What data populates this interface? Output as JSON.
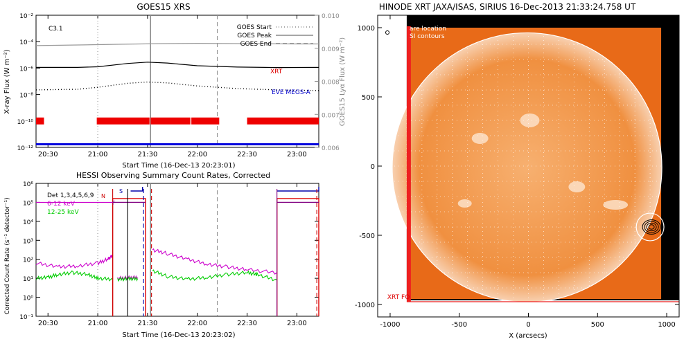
{
  "chart_data": [
    {
      "type": "line",
      "title": "GOES15 XRS",
      "flare_class": "C3.1",
      "xlabel": "Start Time (16-Dec-13 20:23:01)",
      "ylabel": "X-ray Flux (W m⁻²)",
      "y2label": "GOES15 Lyα Flux (W m⁻²)",
      "x_ticks": [
        "20:30",
        "21:00",
        "21:30",
        "22:00",
        "22:30",
        "23:00"
      ],
      "x_tick_hours": [
        20.5,
        21.0,
        21.5,
        22.0,
        22.5,
        23.0
      ],
      "xlim_hours": [
        20.38,
        23.22
      ],
      "ylim_log": [
        -12,
        -2
      ],
      "y_ticks": [
        "10⁻¹²",
        "10⁻¹⁰",
        "10⁻⁸",
        "10⁻⁶",
        "10⁻⁴",
        "10⁻²"
      ],
      "y_tick_exps": [
        -12,
        -10,
        -8,
        -6,
        -4,
        -2
      ],
      "y2lim": [
        0.006,
        0.01
      ],
      "y2_ticks": [
        "0.010",
        "0.009",
        "0.008",
        "0.007",
        "0.006"
      ],
      "y2_tick_values": [
        0.01,
        0.009,
        0.008,
        0.007,
        0.006
      ],
      "legend": [
        {
          "label": "GOES Start",
          "style": "dotted",
          "color": "#888888"
        },
        {
          "label": "GOES Peak",
          "style": "solid",
          "color": "#888888"
        },
        {
          "label": "GOES End",
          "style": "dashed",
          "color": "#888888"
        }
      ],
      "event_lines_hours": {
        "start": 21.0,
        "peak": 21.53,
        "end": 22.2
      },
      "instrument_labels": [
        {
          "label": "XRT",
          "color": "#dd0000"
        },
        {
          "label": "EVE MEGS-A",
          "color": "#0000cc"
        }
      ],
      "series": [
        {
          "name": "GOES long",
          "axis": "left",
          "color": "#000000",
          "style": "solid",
          "x": [
            20.38,
            20.8,
            21.0,
            21.3,
            21.5,
            21.7,
            22.0,
            22.4,
            22.8,
            23.22
          ],
          "y_exp": [
            -5.95,
            -5.95,
            -5.9,
            -5.65,
            -5.55,
            -5.62,
            -5.82,
            -5.92,
            -5.96,
            -5.95
          ]
        },
        {
          "name": "GOES short",
          "axis": "left",
          "color": "#000000",
          "style": "dotted",
          "x": [
            20.38,
            20.8,
            21.0,
            21.3,
            21.5,
            21.7,
            22.0,
            22.4,
            22.8,
            23.22
          ],
          "y_exp": [
            -7.65,
            -7.6,
            -7.45,
            -7.15,
            -7.05,
            -7.12,
            -7.35,
            -7.55,
            -7.65,
            -7.7
          ]
        },
        {
          "name": "Lyα",
          "axis": "right",
          "color": "#999999",
          "style": "solid",
          "x": [
            20.38,
            20.8,
            21.2,
            21.6,
            22.0,
            22.5,
            23.0,
            23.22
          ],
          "y": [
            0.00908,
            0.0091,
            0.00912,
            0.00914,
            0.00915,
            0.00914,
            0.00913,
            0.00913
          ]
        }
      ],
      "xrt_coverage_hours": [
        [
          20.38,
          20.46
        ],
        [
          20.99,
          21.52
        ],
        [
          21.53,
          21.93
        ],
        [
          21.94,
          22.22
        ],
        [
          22.5,
          23.22
        ]
      ],
      "eve_coverage_hours": [
        [
          20.38,
          23.22
        ]
      ]
    },
    {
      "type": "line",
      "title": "HESSI Observing Summary Count Rates, Corrected",
      "xlabel": "Start Time (16-Dec-13 20:23:02)",
      "ylabel": "Corrected Count Rate (s⁻¹ detector⁻¹)",
      "x_ticks": [
        "20:30",
        "21:00",
        "21:30",
        "22:00",
        "22:30",
        "23:00"
      ],
      "x_tick_hours": [
        20.5,
        21.0,
        21.5,
        22.0,
        22.5,
        23.0
      ],
      "xlim_hours": [
        20.38,
        23.22
      ],
      "ylim_log": [
        -1,
        6
      ],
      "y_ticks": [
        "10⁻¹",
        "10⁰",
        "10¹",
        "10²",
        "10³",
        "10⁴",
        "10⁵",
        "10⁶"
      ],
      "y_tick_exps": [
        -1,
        0,
        1,
        2,
        3,
        4,
        5,
        6
      ],
      "legend": [
        {
          "label": "Det 1,3,4,5,6,9",
          "color": "#000000"
        },
        {
          "label": "6-12 keV",
          "color": "#cc00cc"
        },
        {
          "label": "12-25 keV",
          "color": "#00cc00"
        }
      ],
      "flag_labels": [
        {
          "label": "N",
          "color": "#cc0000"
        },
        {
          "label": "F",
          "color": "#800080"
        },
        {
          "label": "S",
          "color": "#0000aa"
        }
      ],
      "event_lines_hours": {
        "start": 21.0,
        "peak": 21.53,
        "end": 22.2
      },
      "series": [
        {
          "name": "6-12 keV",
          "color": "#cc00cc",
          "segments": [
            {
              "x": [
                20.38,
                20.6,
                20.8,
                21.0,
                21.1,
                21.15
              ],
              "y_exp": [
                1.8,
                1.6,
                1.65,
                1.8,
                2.0,
                2.2
              ]
            },
            {
              "x": [
                21.2,
                21.3,
                21.4
              ],
              "y_exp": [
                1.0,
                1.02,
                1.05
              ]
            },
            {
              "x": [
                21.55,
                21.7,
                21.9,
                22.1,
                22.3,
                22.5,
                22.8
              ],
              "y_exp": [
                2.5,
                2.3,
                2.0,
                1.75,
                1.6,
                1.45,
                1.3
              ]
            }
          ]
        },
        {
          "name": "12-25 keV",
          "color": "#00cc00",
          "segments": [
            {
              "x": [
                20.38,
                20.5,
                20.6,
                20.75,
                20.9,
                21.0,
                21.15
              ],
              "y_exp": [
                1.0,
                1.05,
                1.2,
                1.3,
                1.2,
                1.0,
                0.95
              ]
            },
            {
              "x": [
                21.2,
                21.3,
                21.4
              ],
              "y_exp": [
                0.95,
                0.97,
                0.98
              ]
            },
            {
              "x": [
                21.55,
                21.7,
                21.9,
                22.1,
                22.3,
                22.5,
                22.6,
                22.8
              ],
              "y_exp": [
                1.4,
                1.1,
                0.95,
                1.05,
                1.2,
                1.3,
                1.2,
                0.9
              ]
            }
          ]
        }
      ],
      "attenuator_red_hours": [
        [
          21.15,
          21.48
        ],
        [
          22.8,
          23.22
        ]
      ],
      "attenuator_red_level_exp": 5.2,
      "attenuator_purple_hours": [
        [
          21.15,
          21.48
        ],
        [
          22.8,
          23.22
        ]
      ],
      "attenuator_purple_level_exp": 5.0,
      "sweep_blue_hours": [
        [
          21.33,
          21.45
        ],
        [
          22.8,
          23.22
        ]
      ],
      "sweep_blue_level_exp": 5.6,
      "vertical_markers_hours": [
        {
          "x": 21.15,
          "color": "#cc0000",
          "style": "solid"
        },
        {
          "x": 21.3,
          "color": "#000000",
          "style": "solid"
        },
        {
          "x": 21.46,
          "color": "#0000aa",
          "style": "dashed"
        },
        {
          "x": 21.54,
          "color": "#cc0000",
          "style": "dashed"
        },
        {
          "x": 22.8,
          "color": "#800080",
          "style": "solid"
        },
        {
          "x": 23.2,
          "color": "#cc0000",
          "style": "dashed"
        }
      ]
    },
    {
      "type": "heatmap",
      "title": "HINODE XRT JAXA/ISAS, SIRIUS 16-Dec-2013 21:33:24.758 UT",
      "xlabel": "X (arcsecs)",
      "ylabel": "",
      "x_ticks": [
        "-1000",
        "-500",
        "0",
        "500",
        "1000"
      ],
      "x_tick_values": [
        -1000,
        -500,
        0,
        500,
        1000
      ],
      "y_ticks": [
        "1000",
        "500",
        "0",
        "-500",
        "-1000"
      ],
      "y_tick_values": [
        1000,
        500,
        0,
        -500,
        -1000
      ],
      "xlim": [
        -1090,
        1090
      ],
      "ylim": [
        -1090,
        1090
      ],
      "legend": [
        "are location",
        "SI contours"
      ],
      "fov_label": "XRT FO",
      "solar_radius_arcsec": 975,
      "flare_location_arcsec": [
        880,
        -440
      ],
      "flare_circle_radius_arcsec": 100,
      "colors": {
        "disk": "#ee6a10",
        "fov": "#ee2020",
        "background": "#000000"
      }
    }
  ]
}
